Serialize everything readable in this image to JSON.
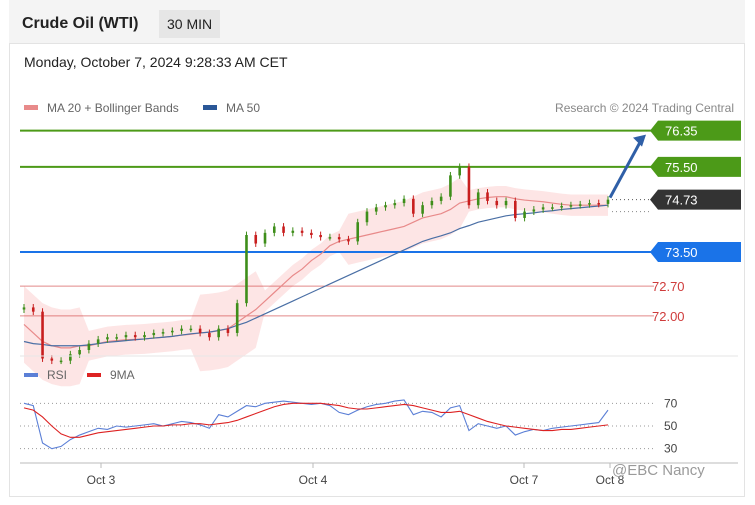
{
  "header": {
    "title": "Crude Oil (WTI)",
    "timeframe": "30 MIN",
    "datetime": "Monday, October 7, 2024 9:28:33 AM CET"
  },
  "legend": {
    "ma20_label": "MA 20 + Bollinger Bands",
    "ma50_label": "MA 50",
    "credit": "Research © 2024 Trading Central",
    "rsi_label": "RSI",
    "rsi_ma_label": "9MA"
  },
  "watermark": "@EBC  Nancy",
  "colors": {
    "green": "#4c9a18",
    "blue": "#1a73e8",
    "red": "#cf3b3b",
    "ma20": "#e88a8a",
    "ma50": "#4a6fa5",
    "band": "#fde0e0",
    "arrow": "#2f5fa7",
    "rsi": "#5b7fd6",
    "rsi_ma": "#d22",
    "current": "#333333"
  },
  "chart_data": [
    {
      "type": "candlestick",
      "title": "Crude Oil (WTI)",
      "ylim": [
        71.2,
        76.6
      ],
      "x_ticks": [
        "Oct 3",
        "Oct 4",
        "Oct 7",
        "Oct 8"
      ],
      "levels": [
        {
          "value": 76.35,
          "label": "76.35",
          "role": "resistance",
          "color": "green"
        },
        {
          "value": 75.5,
          "label": "75.50",
          "role": "resistance",
          "color": "green"
        },
        {
          "value": 74.73,
          "label": "74.73",
          "role": "current",
          "color": "current"
        },
        {
          "value": 73.5,
          "label": "73.50",
          "role": "pivot",
          "color": "blue"
        },
        {
          "value": 72.7,
          "label": "72.70",
          "role": "support",
          "color": "red"
        },
        {
          "value": 72.0,
          "label": "72.00",
          "role": "support",
          "color": "red"
        }
      ],
      "close_prices": [
        72.2,
        72.1,
        71.0,
        70.95,
        70.95,
        71.1,
        71.2,
        71.35,
        71.45,
        71.5,
        71.5,
        71.55,
        71.5,
        71.55,
        71.6,
        71.62,
        71.65,
        71.7,
        71.7,
        71.6,
        71.5,
        71.7,
        71.6,
        72.3,
        73.9,
        73.7,
        73.95,
        74.1,
        73.95,
        74.0,
        73.95,
        73.9,
        73.85,
        73.85,
        73.8,
        73.75,
        74.2,
        74.45,
        74.55,
        74.6,
        74.65,
        74.75,
        74.4,
        74.6,
        74.7,
        74.8,
        75.3,
        75.5,
        74.6,
        74.9,
        74.7,
        74.6,
        74.7,
        74.3,
        74.45,
        74.5,
        74.55,
        74.55,
        74.58,
        74.6,
        74.62,
        74.65,
        74.63,
        74.73
      ],
      "ma20": [
        71.8,
        71.6,
        71.4,
        71.3,
        71.25,
        71.25,
        71.3,
        71.3,
        71.35,
        71.4,
        71.42,
        71.44,
        71.45,
        71.46,
        71.48,
        71.5,
        71.52,
        71.55,
        71.57,
        71.6,
        71.62,
        71.65,
        71.7,
        71.85,
        72.0,
        72.15,
        72.35,
        72.55,
        72.75,
        72.95,
        73.1,
        73.3,
        73.45,
        73.65,
        73.75,
        73.8,
        73.85,
        73.9,
        73.95,
        74.0,
        74.05,
        74.1,
        74.2,
        74.3,
        74.35,
        74.4,
        74.5,
        74.65,
        74.7,
        74.75,
        74.78,
        74.8,
        74.8,
        74.75,
        74.72,
        74.7,
        74.68,
        74.65,
        74.62,
        74.6,
        74.6,
        74.6,
        74.6,
        74.6
      ],
      "ma50": [
        71.4,
        71.35,
        71.33,
        71.3,
        71.3,
        71.3,
        71.3,
        71.32,
        71.35,
        71.38,
        71.4,
        71.42,
        71.44,
        71.46,
        71.48,
        71.5,
        71.52,
        71.55,
        71.58,
        71.6,
        71.62,
        71.66,
        71.7,
        71.78,
        71.85,
        71.95,
        72.05,
        72.15,
        72.25,
        72.35,
        72.45,
        72.55,
        72.65,
        72.75,
        72.85,
        72.95,
        73.05,
        73.15,
        73.25,
        73.35,
        73.45,
        73.55,
        73.65,
        73.75,
        73.82,
        73.88,
        73.95,
        74.05,
        74.12,
        74.2,
        74.25,
        74.3,
        74.35,
        74.38,
        74.4,
        74.42,
        74.45,
        74.47,
        74.5,
        74.52,
        74.54,
        74.56,
        74.58,
        74.6
      ],
      "target_arrow": {
        "from": 74.73,
        "to": 76.35
      }
    },
    {
      "type": "line",
      "title": "RSI",
      "ylim": [
        20,
        80
      ],
      "y_ticks": [
        70,
        50,
        30
      ],
      "series": [
        {
          "name": "RSI",
          "values": [
            70,
            68,
            35,
            30,
            32,
            38,
            42,
            45,
            48,
            47,
            50,
            49,
            50,
            51,
            52,
            50,
            52,
            54,
            53,
            51,
            48,
            60,
            58,
            63,
            68,
            67,
            70,
            71,
            72,
            71,
            70,
            69,
            70,
            68,
            62,
            60,
            64,
            67,
            69,
            70,
            72,
            73,
            60,
            63,
            62,
            58,
            66,
            68,
            46,
            52,
            50,
            48,
            50,
            42,
            45,
            47,
            46,
            48,
            49,
            50,
            51,
            52,
            53,
            64
          ]
        },
        {
          "name": "9MA",
          "values": [
            66,
            64,
            58,
            50,
            43,
            40,
            40,
            42,
            44,
            45,
            46,
            47,
            48,
            49,
            50,
            50,
            51,
            51,
            52,
            52,
            51,
            52,
            53,
            55,
            58,
            61,
            64,
            67,
            69,
            70,
            70,
            70,
            70,
            69,
            68,
            66,
            65,
            65,
            66,
            67,
            68,
            69,
            68,
            66,
            64,
            62,
            62,
            63,
            60,
            57,
            54,
            52,
            50,
            49,
            48,
            47,
            46,
            46,
            47,
            47,
            48,
            49,
            50,
            51
          ]
        }
      ]
    }
  ]
}
